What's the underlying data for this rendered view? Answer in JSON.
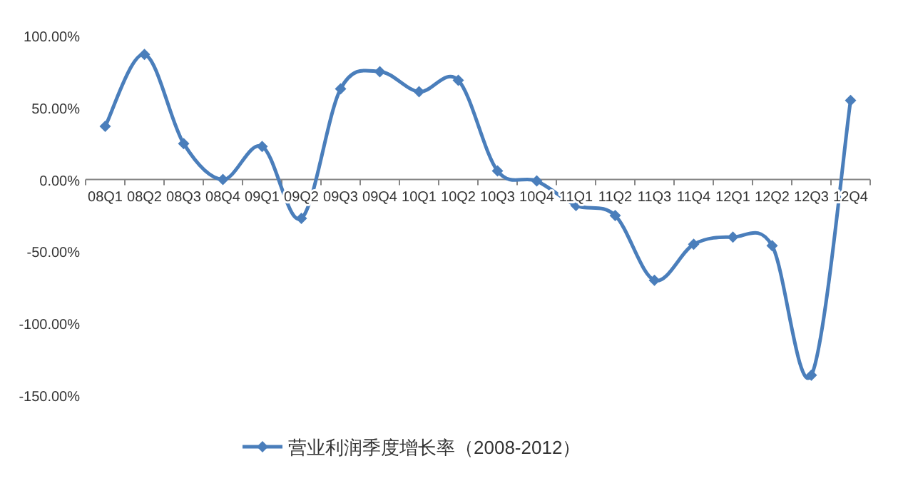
{
  "chart_data": {
    "type": "line",
    "categories": [
      "08Q1",
      "08Q2",
      "08Q3",
      "08Q4",
      "09Q1",
      "09Q2",
      "09Q3",
      "09Q4",
      "10Q1",
      "10Q2",
      "10Q3",
      "10Q4",
      "11Q1",
      "11Q2",
      "11Q3",
      "11Q4",
      "12Q1",
      "12Q2",
      "12Q3",
      "12Q4"
    ],
    "series": [
      {
        "name": "营业利润季度增长率（2008-2012）",
        "color": "#4a7ebb",
        "values": [
          37,
          87,
          25,
          0,
          23,
          -27,
          63,
          75,
          61,
          69,
          6,
          -1,
          -18,
          -25,
          -70,
          -45,
          -40,
          -46,
          -136,
          55
        ]
      }
    ],
    "ylim": [
      -150,
      100
    ],
    "yticks": [
      {
        "value": -150,
        "label": "-150.00%"
      },
      {
        "value": -100,
        "label": "-100.00%"
      },
      {
        "value": -50,
        "label": "-50.00%"
      },
      {
        "value": 0,
        "label": "0.00%"
      },
      {
        "value": 50,
        "label": "50.00%"
      },
      {
        "value": 100,
        "label": "100.00%"
      }
    ],
    "grid": false,
    "legend": "bottom",
    "marker": "diamond",
    "line_style": "solid"
  }
}
